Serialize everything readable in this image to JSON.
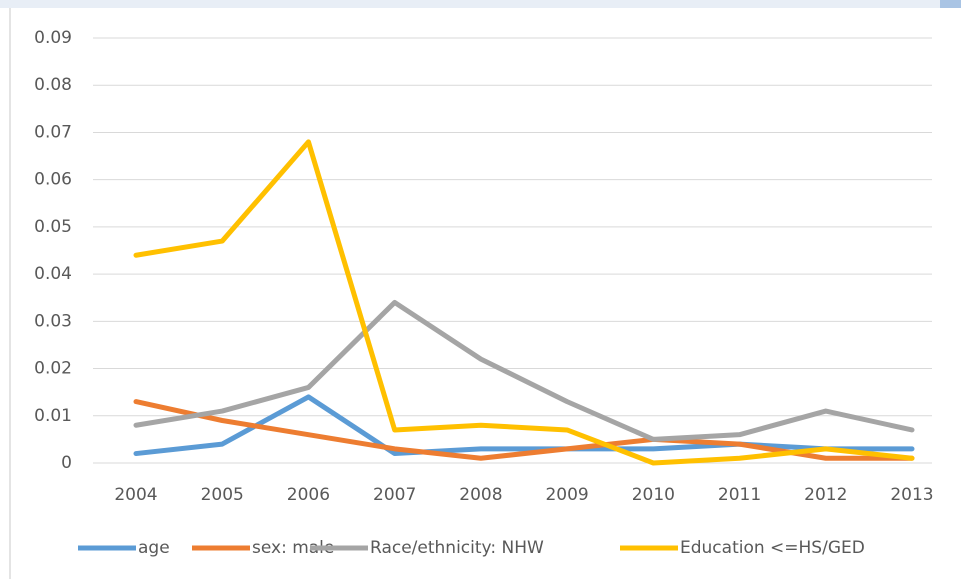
{
  "chart_data": {
    "type": "line",
    "categories": [
      "2004",
      "2005",
      "2006",
      "2007",
      "2008",
      "2009",
      "2010",
      "2011",
      "2012",
      "2013"
    ],
    "series": [
      {
        "name": "age",
        "color": "#5b9bd5",
        "values": [
          0.002,
          0.004,
          0.014,
          0.002,
          0.003,
          0.003,
          0.003,
          0.004,
          0.003,
          0.003
        ]
      },
      {
        "name": "sex: male",
        "color": "#ed7d31",
        "values": [
          0.013,
          0.009,
          0.006,
          0.003,
          0.001,
          0.003,
          0.005,
          0.004,
          0.001,
          0.001
        ]
      },
      {
        "name": "Race/ethnicity: NHW",
        "color": "#a5a5a5",
        "values": [
          0.008,
          0.011,
          0.016,
          0.034,
          0.022,
          0.013,
          0.005,
          0.006,
          0.011,
          0.007
        ]
      },
      {
        "name": "Education <=HS/GED",
        "color": "#ffc000",
        "values": [
          0.044,
          0.047,
          0.068,
          0.007,
          0.008,
          0.007,
          0,
          0.001,
          0.003,
          0.001
        ]
      }
    ],
    "ylim": [
      0,
      0.09
    ],
    "yticks": [
      0,
      0.01,
      0.02,
      0.03,
      0.04,
      0.05,
      0.06,
      0.07,
      0.08,
      0.09
    ],
    "grid": true,
    "legend": "bottom"
  }
}
